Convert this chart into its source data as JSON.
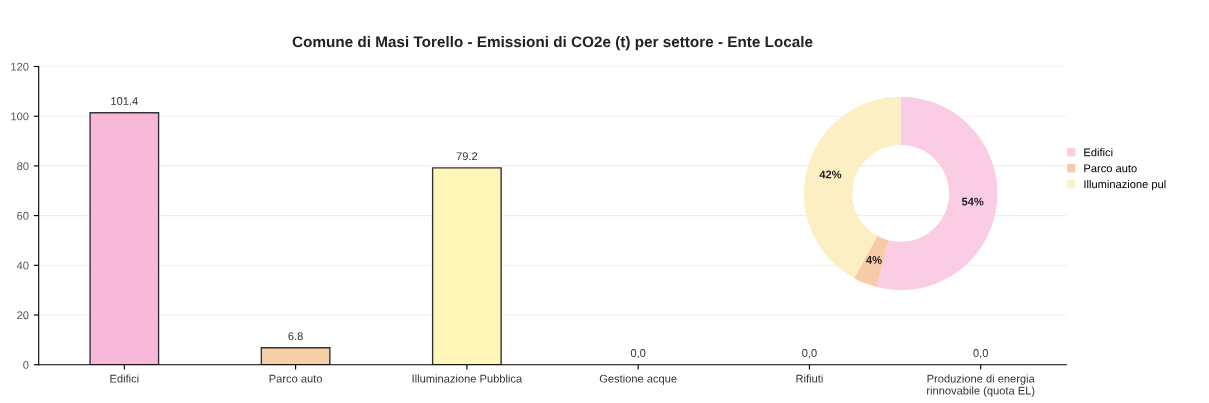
{
  "chart_data": [
    {
      "type": "bar",
      "title": "Comune di Masi Torello - Emissioni di CO2e (t) per settore - Ente Locale",
      "categories": [
        "Edifici",
        "Parco auto",
        "Illuminazione Pubblica",
        "Gestione acque",
        "Rifiuti",
        "Produzione di energia\nrinnovabile (quota EL)"
      ],
      "values": [
        101.4,
        6.8,
        79.2,
        0,
        0,
        0
      ],
      "value_labels": [
        "101.4",
        "6.8",
        "79.2",
        "0,0",
        "0,0",
        "0,0"
      ],
      "colors": [
        "#f9b8d8",
        "#f8d0a8",
        "#fff6b8",
        null,
        null,
        null
      ],
      "ylim": [
        0,
        120
      ],
      "yticks": [
        0,
        20,
        40,
        60,
        80,
        100,
        120
      ],
      "grid": "y",
      "legend": false
    },
    {
      "type": "donut",
      "categories": [
        "Edifici",
        "Parco auto",
        "Illuminazione pul"
      ],
      "values": [
        54,
        4,
        42
      ],
      "value_labels": [
        "54%",
        "4%",
        "42%"
      ],
      "colors": [
        "#fbcde4",
        "#f8cba8",
        "#fdefc4"
      ],
      "legend": "right"
    }
  ]
}
